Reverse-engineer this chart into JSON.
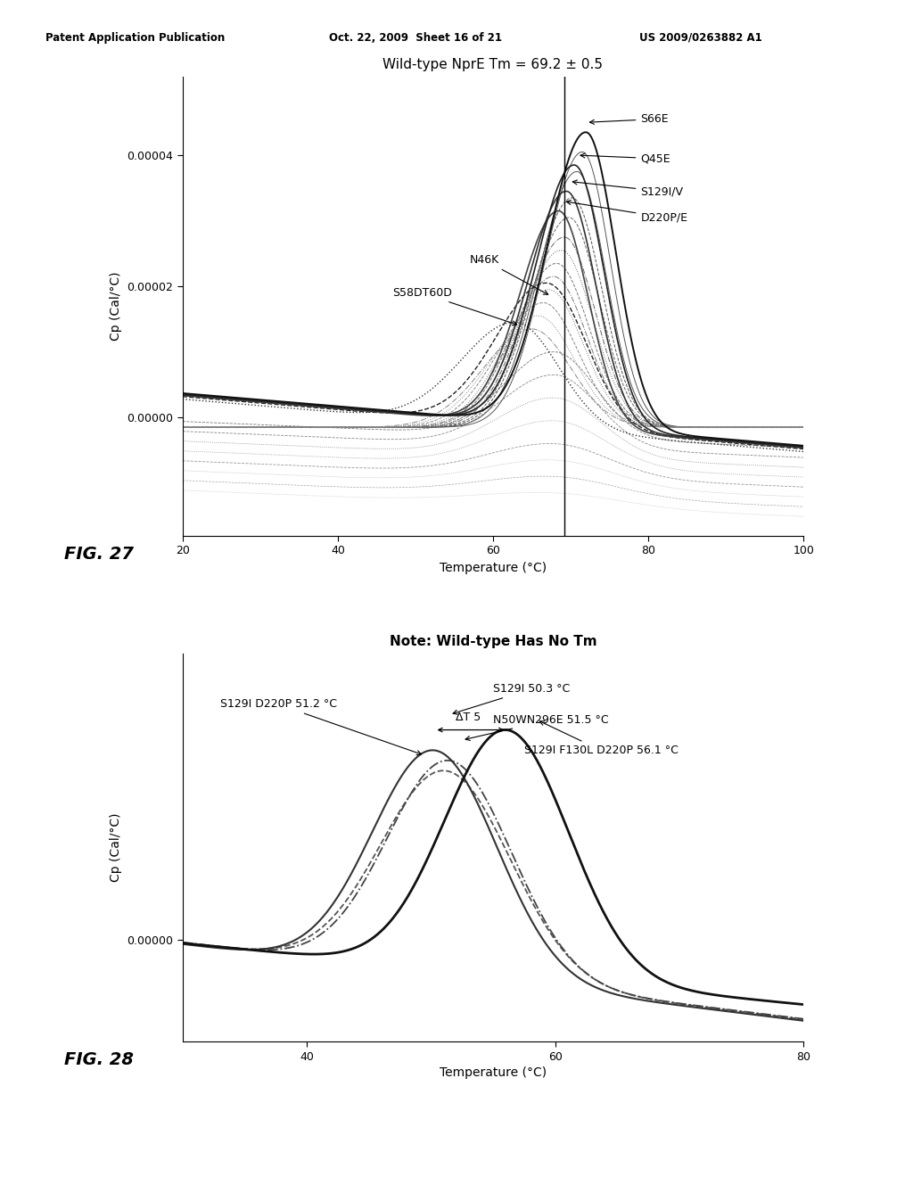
{
  "fig1_title": "Wild-type NprE Tm = 69.2 ± 0.5",
  "fig1_xlabel": "Temperature (°C)",
  "fig1_ylabel": "Cp (Cal/°C)",
  "fig1_xlim": [
    20,
    100
  ],
  "fig1_ylim": [
    -1.8e-05,
    5.2e-05
  ],
  "fig1_yticks": [
    0.0,
    2e-05,
    4e-05
  ],
  "fig1_yticklabels": [
    "0.00000",
    "0.00002",
    "0.00004"
  ],
  "fig1_xticks": [
    20,
    40,
    60,
    80,
    100
  ],
  "fig1_vline_x": 69.2,
  "fig1_label": "FIG. 27",
  "fig2_title": "Note: Wild-type Has No Tm",
  "fig2_xlabel": "Temperature (°C)",
  "fig2_ylabel": "Cp (Cal/°C)",
  "fig2_xlim": [
    30,
    80
  ],
  "fig2_ylim": [
    -1e-05,
    2.8e-05
  ],
  "fig2_yticks": [
    0.0
  ],
  "fig2_yticklabels": [
    "0.00000"
  ],
  "fig2_xticks": [
    40,
    60,
    80
  ],
  "fig2_label": "FIG. 28",
  "header_left": "Patent Application Publication",
  "header_mid": "Oct. 22, 2009  Sheet 16 of 21",
  "header_right": "US 2009/0263882 A1",
  "background_color": "#ffffff"
}
